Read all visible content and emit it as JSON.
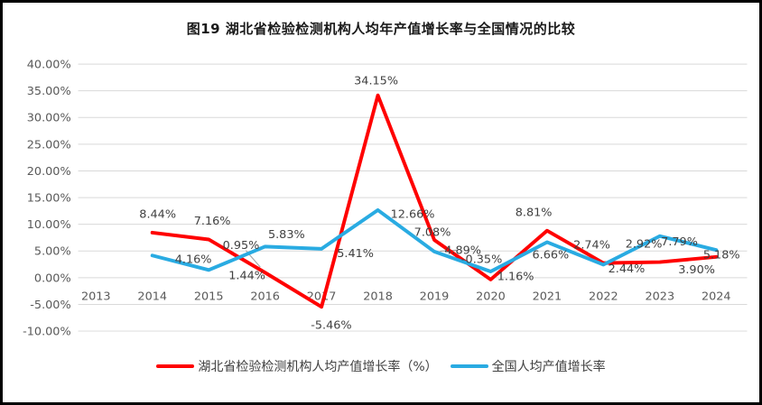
{
  "title": "图19  湖北省检验检测机构人均年产值增长率与全国情况的比较",
  "chart_data": {
    "type": "line",
    "title": "图19  湖北省检验检测机构人均年产值增长率与全国情况的比较",
    "categories": [
      "2013",
      "2014",
      "2015",
      "2016",
      "2017",
      "2018",
      "2019",
      "2020",
      "2021",
      "2022",
      "2023",
      "2024"
    ],
    "series": [
      {
        "name": "湖北省检验检测机构人均产值增长率（%）",
        "color": "#FF0000",
        "start_category": "2014",
        "values": [
          8.44,
          7.16,
          0.95,
          -5.46,
          34.15,
          7.08,
          -0.35,
          8.81,
          2.74,
          2.92,
          3.9
        ],
        "labels": [
          "8.44%",
          "7.16%",
          "0.95%",
          "-5.46%",
          "34.15%",
          "7.08%",
          "-0.35%",
          "8.81%",
          "2.74%",
          "2.92%",
          "3.90%"
        ],
        "label_offsets": [
          [
            6,
            -21
          ],
          [
            4,
            -21
          ],
          [
            -27,
            -31
          ],
          [
            11,
            20
          ],
          [
            -2,
            -17
          ],
          [
            -2,
            -9
          ],
          [
            -10,
            -23
          ],
          [
            -15,
            -21
          ],
          [
            -13,
            -21
          ],
          [
            -18,
            -21
          ],
          [
            -22,
            14
          ]
        ]
      },
      {
        "name": "全国人均产值增长率",
        "color": "#29ABE2",
        "start_category": "2014",
        "values": [
          4.16,
          1.44,
          5.83,
          5.41,
          12.66,
          4.89,
          1.16,
          6.66,
          2.44,
          7.79,
          5.18
        ],
        "labels": [
          "4.16%",
          "1.44%",
          "5.83%",
          "5.41%",
          "12.66%",
          "4.89%",
          "1.16%",
          "6.66%",
          "2.44%",
          "7.79%",
          "5.18%"
        ],
        "label_offsets": [
          [
            46,
            4
          ],
          [
            43,
            6
          ],
          [
            24,
            -14
          ],
          [
            38,
            5
          ],
          [
            39,
            4
          ],
          [
            32,
            -2
          ],
          [
            28,
            5
          ],
          [
            4,
            14
          ],
          [
            26,
            4
          ],
          [
            22,
            6
          ],
          [
            6,
            5
          ]
        ]
      }
    ],
    "y_axis": {
      "min": -10,
      "max": 40,
      "step": 5,
      "tick_labels": [
        "40.00%",
        "35.00%",
        "30.00%",
        "25.00%",
        "20.00%",
        "15.00%",
        "10.00%",
        "5.00%",
        "0.00%",
        "-5.00%",
        "-10.00%"
      ]
    },
    "x_axis": {
      "tick_labels": [
        "2013",
        "2014",
        "2015",
        "2016",
        "2017",
        "2018",
        "2019",
        "2020",
        "2021",
        "2022",
        "2023",
        "2024"
      ]
    },
    "grid": "horizontal",
    "legend_position": "bottom",
    "leader_lines": [
      {
        "series": 0,
        "point": 2
      },
      {
        "series": 1,
        "point": 5
      }
    ],
    "colors": {
      "gridline": "#D9D9D9",
      "axis_text": "#595959",
      "label_text": "#404040",
      "leader": "#A6A6A6"
    }
  }
}
